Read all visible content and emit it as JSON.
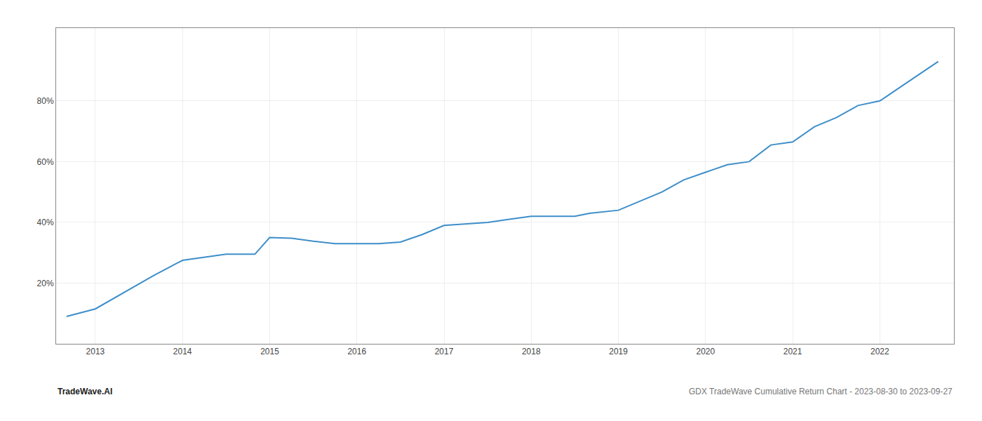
{
  "chart_data": {
    "type": "line",
    "x": [
      2012.67,
      2013.0,
      2013.67,
      2014.0,
      2014.5,
      2014.83,
      2015.0,
      2015.25,
      2015.5,
      2015.75,
      2016.0,
      2016.25,
      2016.5,
      2016.75,
      2017.0,
      2017.5,
      2017.75,
      2018.0,
      2018.25,
      2018.5,
      2018.67,
      2019.0,
      2019.5,
      2019.75,
      2020.0,
      2020.25,
      2020.5,
      2020.75,
      2021.0,
      2021.25,
      2021.5,
      2021.75,
      2022.0,
      2022.67
    ],
    "values": [
      0.09,
      0.115,
      0.225,
      0.275,
      0.295,
      0.295,
      0.35,
      0.348,
      0.338,
      0.33,
      0.33,
      0.33,
      0.335,
      0.36,
      0.39,
      0.4,
      0.41,
      0.42,
      0.42,
      0.42,
      0.43,
      0.44,
      0.5,
      0.54,
      0.565,
      0.59,
      0.6,
      0.655,
      0.665,
      0.715,
      0.745,
      0.785,
      0.8,
      0.93
    ],
    "color": "#3d8ec9",
    "xlim": [
      2012.55,
      2022.85
    ],
    "ylim": [
      0.0,
      1.04
    ],
    "xticks": [
      2013,
      2014,
      2015,
      2016,
      2017,
      2018,
      2019,
      2020,
      2021,
      2022
    ],
    "yticks": [
      {
        "value": 0.2,
        "label": "20%"
      },
      {
        "value": 0.4,
        "label": "40%"
      },
      {
        "value": 0.6,
        "label": "60%"
      },
      {
        "value": 0.8,
        "label": "80%"
      }
    ],
    "grid": true,
    "annotations": [
      "TradeWave.AI",
      "GDX TradeWave Cumulative Return Chart - 2023-08-30 to 2023-09-27"
    ]
  }
}
